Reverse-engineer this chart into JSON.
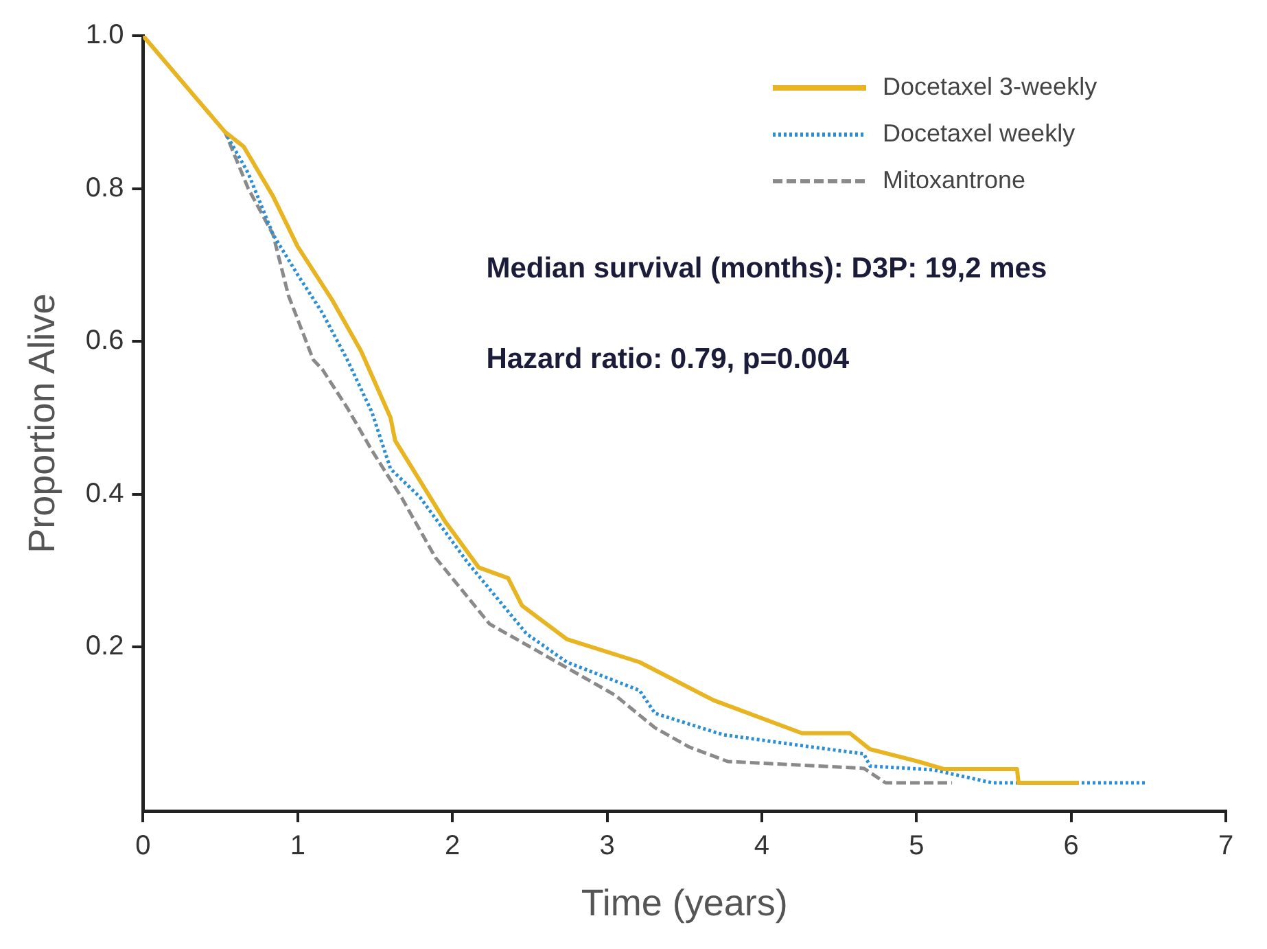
{
  "chart_data": {
    "type": "line",
    "xlabel": "Time (years)",
    "ylabel": "Proportion Alive",
    "xlim": [
      0,
      7
    ],
    "xticks": [
      0,
      1,
      2,
      3,
      4,
      5,
      6,
      7
    ],
    "ylim": [
      -0.015,
      1
    ],
    "yticks": [
      0.2,
      0.4,
      0.6,
      0.8,
      {
        "value": 1,
        "label": "1.0"
      }
    ],
    "grid": false,
    "legend": "top right",
    "marker": "none",
    "annotations": [
      "Median survival (months): D3P: 19,2 mes",
      "Hazard ratio: 0.79, p=0.004"
    ],
    "series": [
      {
        "name": "Docetaxel 3-weekly",
        "color": "#e8b422",
        "line_style": "solid",
        "x": [
          0,
          0.53,
          0.65,
          0.84,
          1.0,
          1.22,
          1.41,
          1.6,
          1.63,
          1.95,
          2.17,
          2.36,
          2.45,
          2.74,
          3.21,
          3.69,
          4.26,
          4.57,
          4.7,
          5.01,
          5.18,
          5.65,
          5.66,
          6.05
        ],
        "values": [
          1,
          0.874,
          0.855,
          0.79,
          0.724,
          0.655,
          0.587,
          0.5,
          0.47,
          0.365,
          0.304,
          0.29,
          0.254,
          0.21,
          0.18,
          0.13,
          0.087,
          0.087,
          0.066,
          0.05,
          0.04,
          0.04,
          0.022,
          0.022
        ]
      },
      {
        "name": "Docetaxel weekly",
        "color": "#2a8fd4",
        "line_style": "dotted",
        "x": [
          0,
          0.53,
          0.68,
          0.84,
          1.0,
          1.16,
          1.32,
          1.48,
          1.6,
          1.79,
          2.1,
          2.48,
          2.74,
          3.21,
          3.31,
          3.75,
          4.32,
          4.66,
          4.7,
          5.11,
          5.49,
          6.48
        ],
        "values": [
          1,
          0.874,
          0.82,
          0.74,
          0.687,
          0.637,
          0.576,
          0.507,
          0.433,
          0.396,
          0.31,
          0.217,
          0.18,
          0.143,
          0.113,
          0.085,
          0.069,
          0.06,
          0.044,
          0.039,
          0.022,
          0.022
        ]
      },
      {
        "name": "Mitoxantrone",
        "color": "#8a8a8a",
        "line_style": "dashed",
        "x": [
          0,
          0.53,
          0.68,
          0.84,
          0.94,
          1.1,
          1.16,
          1.32,
          1.48,
          1.67,
          1.89,
          2.24,
          2.52,
          3.05,
          3.31,
          3.53,
          3.78,
          4.66,
          4.8,
          5.23
        ],
        "values": [
          1,
          0.874,
          0.8,
          0.74,
          0.66,
          0.576,
          0.563,
          0.513,
          0.457,
          0.396,
          0.317,
          0.23,
          0.198,
          0.137,
          0.094,
          0.069,
          0.05,
          0.041,
          0.022,
          0.022
        ]
      }
    ]
  }
}
